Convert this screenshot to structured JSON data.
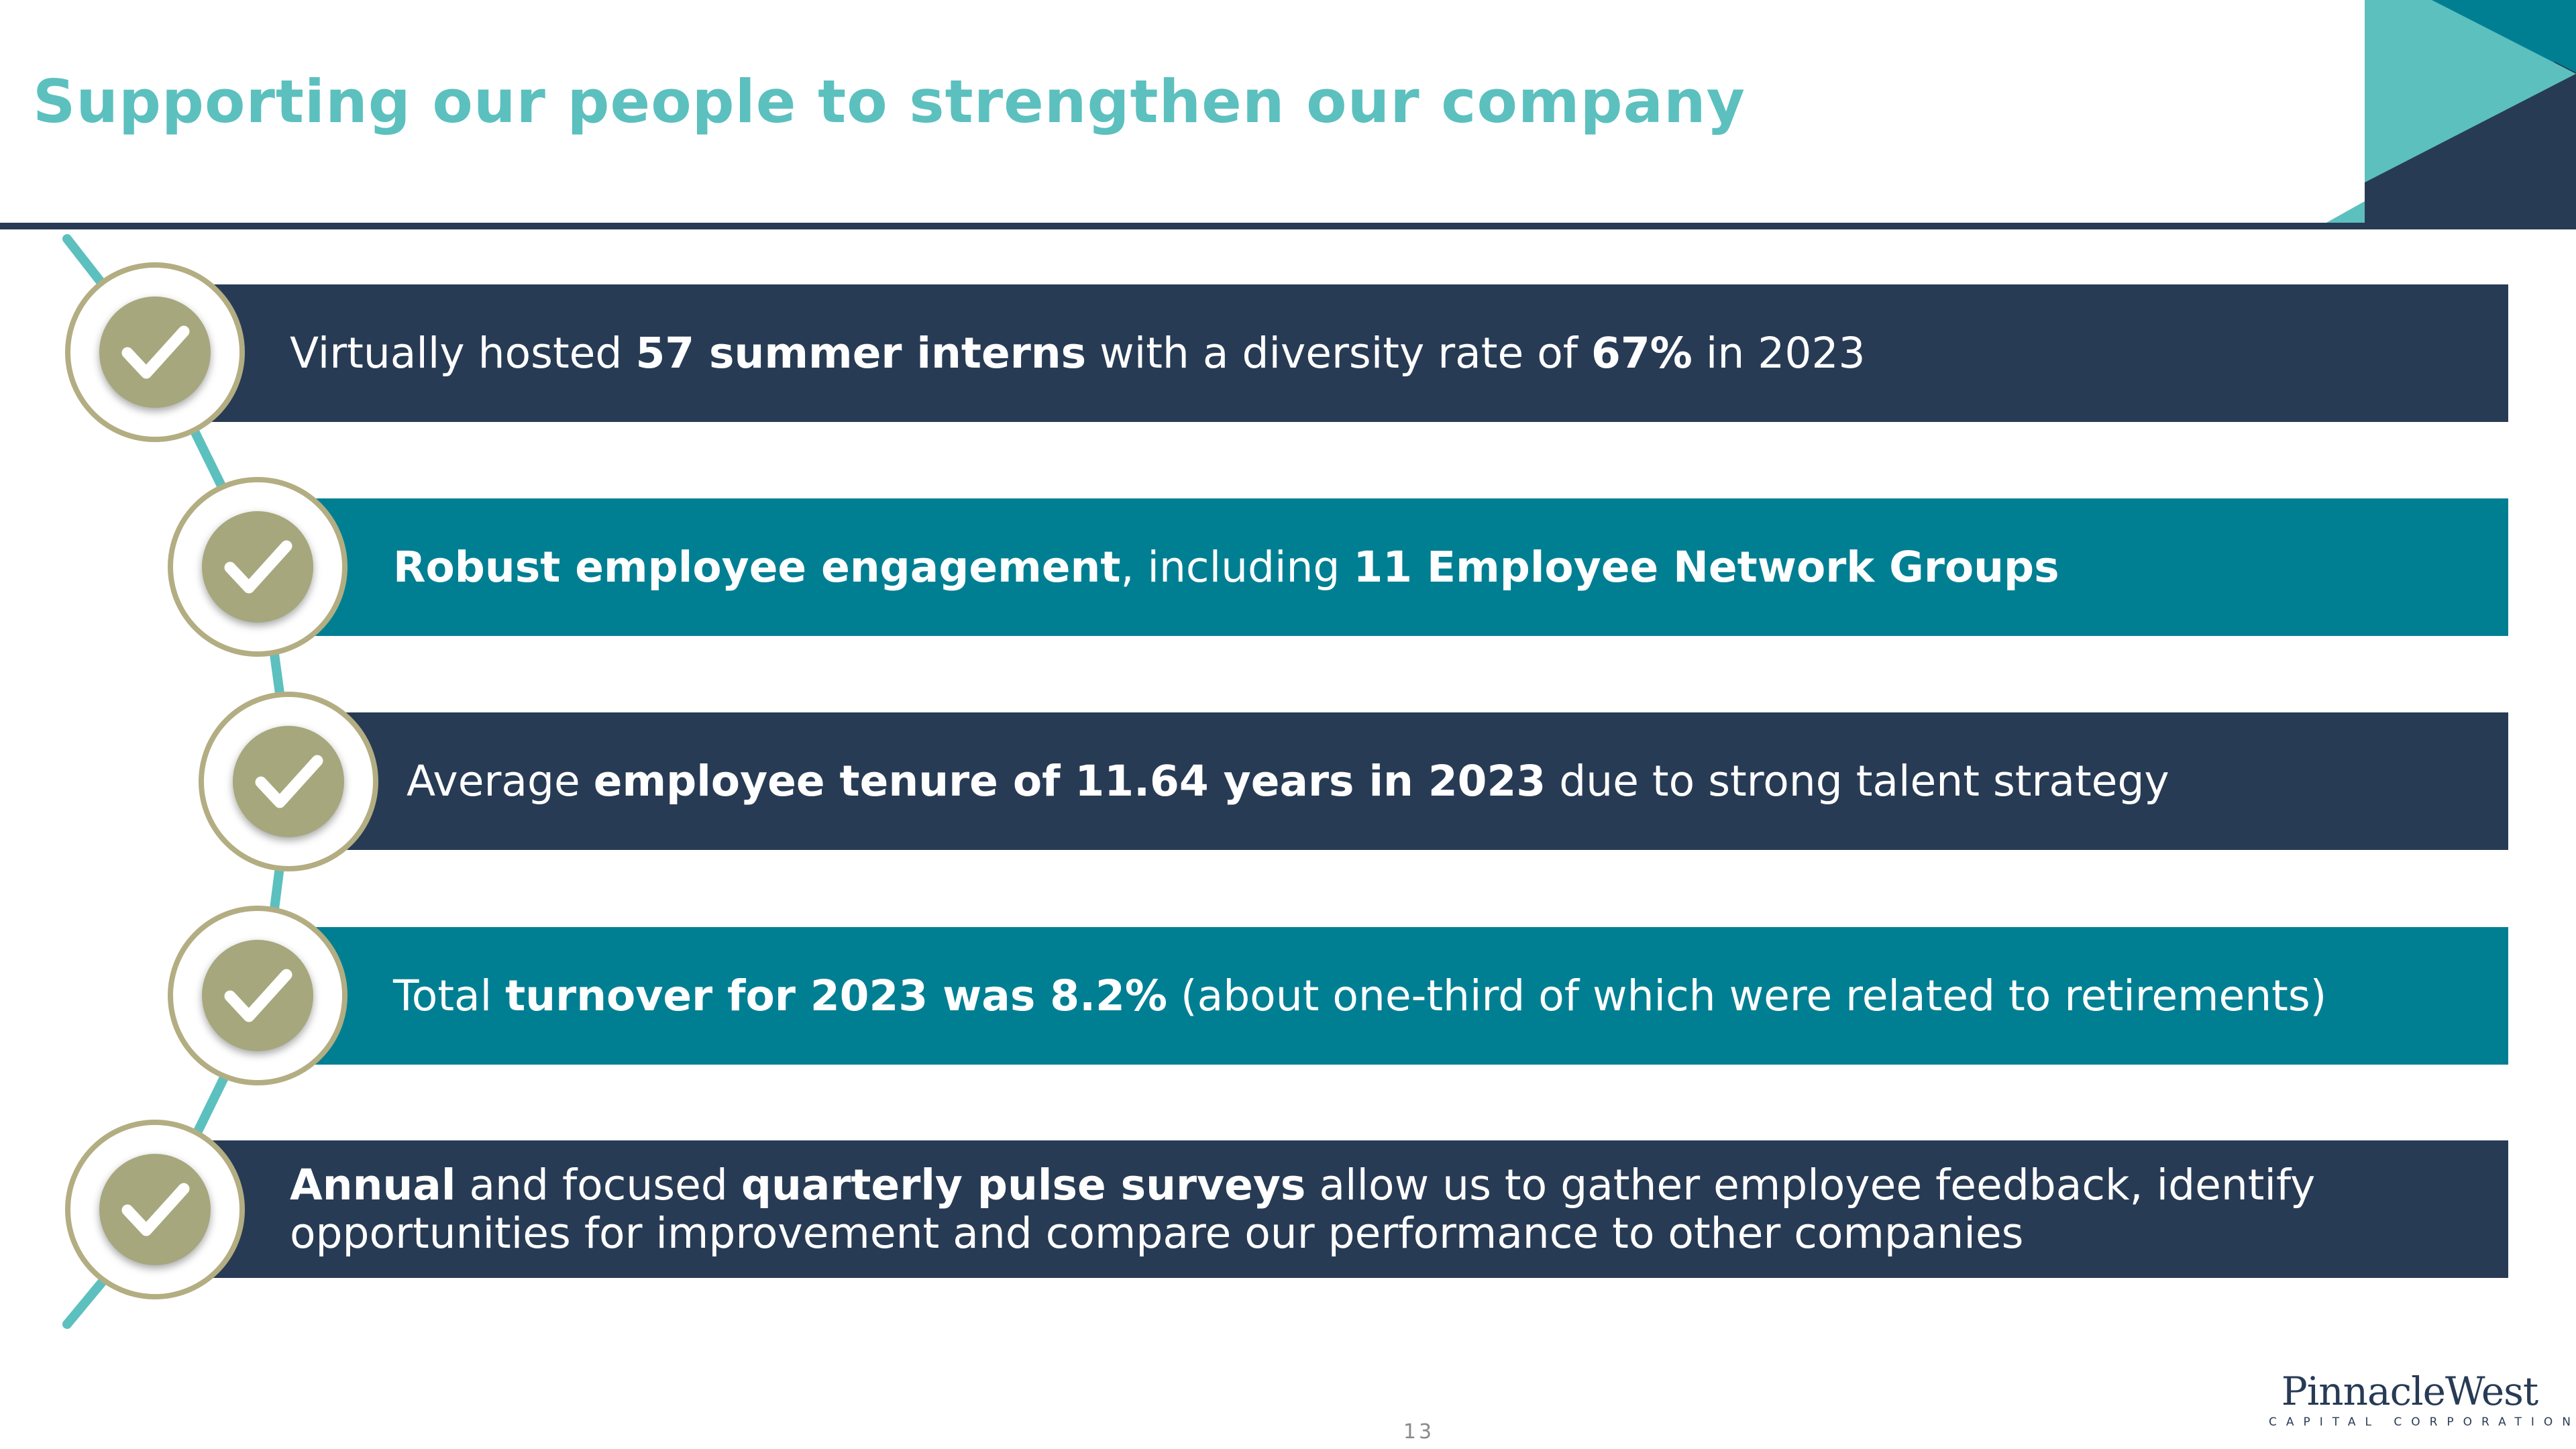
{
  "slide": {
    "title": "Supporting our people to strengthen our company",
    "page_number": "13"
  },
  "items": [
    {
      "icon": "checkmark-icon",
      "parts": [
        {
          "text": "Virtually hosted ",
          "bold": false
        },
        {
          "text": "57 summer interns",
          "bold": true
        },
        {
          "text": " with a diversity rate of ",
          "bold": false
        },
        {
          "text": "67%",
          "bold": true
        },
        {
          "text": " in 2023",
          "bold": false
        }
      ]
    },
    {
      "icon": "checkmark-icon",
      "parts": [
        {
          "text": "Robust employee engagement",
          "bold": true
        },
        {
          "text": ", including ",
          "bold": false
        },
        {
          "text": "11 Employee Network Groups",
          "bold": true
        }
      ]
    },
    {
      "icon": "checkmark-icon",
      "parts": [
        {
          "text": "Average ",
          "bold": false
        },
        {
          "text": "employee tenure of 11.64 years in 2023",
          "bold": true
        },
        {
          "text": " due to strong talent strategy",
          "bold": false
        }
      ]
    },
    {
      "icon": "checkmark-icon",
      "parts": [
        {
          "text": "Total ",
          "bold": false
        },
        {
          "text": "turnover for 2023 was 8.2%",
          "bold": true
        },
        {
          "text": " (about one-third of which were related to retirements)",
          "bold": false
        }
      ]
    },
    {
      "icon": "checkmark-icon",
      "parts": [
        {
          "text": "Annual",
          "bold": true
        },
        {
          "text": " and focused ",
          "bold": false
        },
        {
          "text": "quarterly pulse surveys",
          "bold": true
        },
        {
          "text": " allow us to gather employee feedback, identify",
          "bold": false
        }
      ],
      "line2": "opportunities for improvement and compare our performance to other companies"
    }
  ],
  "logo": {
    "name": "PinnacleWest",
    "subtitle": "CAPITAL CORPORATION"
  },
  "colors": {
    "title": "#5cc0bf",
    "navy": "#283b55",
    "teal": "#007f93",
    "ring": "#b3ad82",
    "check_disc": "#a6a77c",
    "connector": "#5cc0bf"
  }
}
